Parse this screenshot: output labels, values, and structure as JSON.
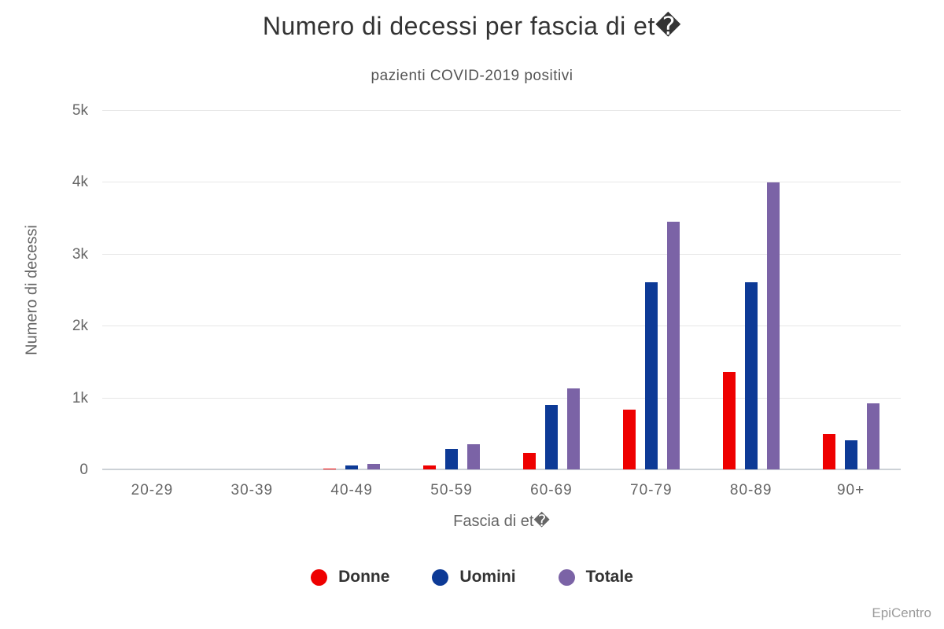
{
  "header": {
    "title": "Numero di decessi per fascia di et�",
    "subtitle": "pazienti COVID-2019 positivi"
  },
  "credit": "EpiCentro",
  "colors": {
    "donne": "#ee0000",
    "uomini": "#0d3a96",
    "totale": "#7b63a6",
    "gridline": "#e7e7e7",
    "axis_line": "#ccd1d6",
    "title_text": "#333333",
    "axis_text": "#666666",
    "credit_text": "#9b9b9b"
  },
  "chart_data": {
    "type": "bar",
    "title": "Numero di decessi per fascia di et�",
    "subtitle": "pazienti COVID-2019 positivi",
    "xlabel": "Fascia di et�",
    "ylabel": "Numero di decessi",
    "ylim": [
      0,
      5000
    ],
    "grid": true,
    "legend_position": "bottom",
    "ytick_values": [
      0,
      1000,
      2000,
      3000,
      4000,
      5000
    ],
    "ytick_labels": [
      "0",
      "1k",
      "2k",
      "3k",
      "4k",
      "5k"
    ],
    "categories": [
      "20-29",
      "30-39",
      "40-49",
      "50-59",
      "60-69",
      "70-79",
      "80-89",
      "90+"
    ],
    "series": [
      {
        "name": "Donne",
        "color": "#ee0000",
        "values": [
          0,
          0,
          10,
          60,
          230,
          830,
          1360,
          490
        ]
      },
      {
        "name": "Uomini",
        "color": "#0d3a96",
        "values": [
          0,
          0,
          60,
          280,
          900,
          2600,
          2600,
          410
        ]
      },
      {
        "name": "Totale",
        "color": "#7b63a6",
        "values": [
          0,
          0,
          80,
          350,
          1130,
          3450,
          3990,
          915
        ]
      }
    ]
  }
}
